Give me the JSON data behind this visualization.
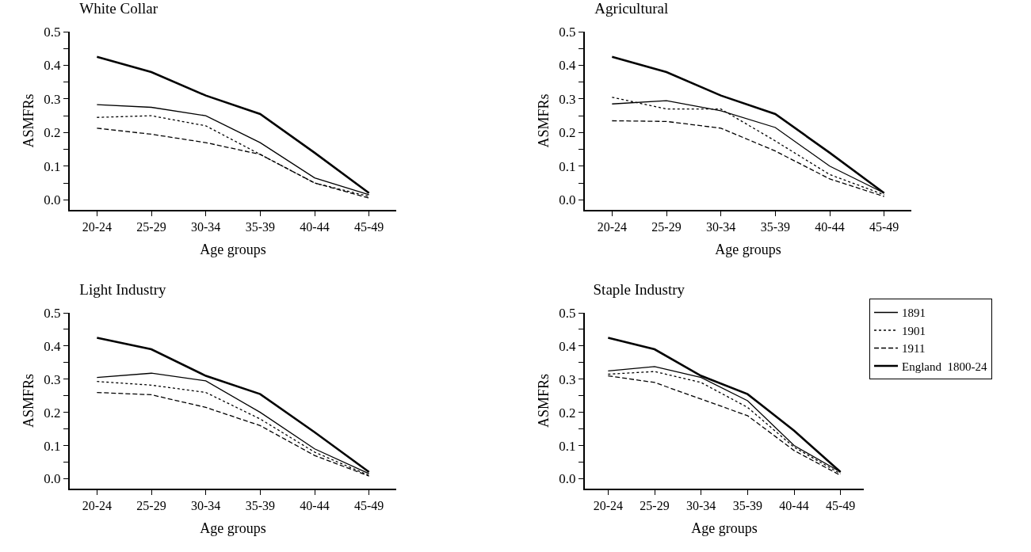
{
  "chart_data": [
    {
      "type": "line",
      "title": "White Collar",
      "xlabel": "Age groups",
      "ylabel": "ASMFRs",
      "categories": [
        "20-24",
        "25-29",
        "30-34",
        "35-39",
        "40-44",
        "45-49"
      ],
      "ylim": [
        -0.03,
        0.5
      ],
      "yticks": [
        {
          "value": 0,
          "label": "0.0"
        },
        {
          "value": 0.05,
          "label": null
        },
        {
          "value": 0.1,
          "label": "0.1"
        },
        {
          "value": 0.15,
          "label": null
        },
        {
          "value": 0.2,
          "label": "0.2"
        },
        {
          "value": 0.25,
          "label": null
        },
        {
          "value": 0.3,
          "label": "0.3"
        },
        {
          "value": 0.35,
          "label": null
        },
        {
          "value": 0.4,
          "label": "0.4"
        },
        {
          "value": 0.45,
          "label": null
        },
        {
          "value": 0.5,
          "label": "0.5"
        }
      ],
      "grid": false,
      "legend": false,
      "marker": "none",
      "series": [
        {
          "color": "#000000",
          "line_style": "solid",
          "values": [
            0.283,
            0.275,
            0.25,
            0.17,
            0.065,
            0.015
          ]
        },
        {
          "color": "#000000",
          "line_style": "dotted",
          "values": [
            0.245,
            0.25,
            0.22,
            0.135,
            0.05,
            0.01
          ]
        },
        {
          "color": "#000000",
          "line_style": "dashed",
          "values": [
            0.213,
            0.195,
            0.17,
            0.135,
            0.05,
            0.005
          ]
        },
        {
          "color": "#000000",
          "line_style": "solid",
          "values": [
            0.425,
            0.38,
            0.31,
            0.255,
            0.14,
            0.02
          ]
        }
      ]
    },
    {
      "type": "line",
      "title": "Agricultural",
      "xlabel": "Age groups",
      "ylabel": "ASMFRs",
      "categories": [
        "20-24",
        "25-29",
        "30-34",
        "35-39",
        "40-44",
        "45-49"
      ],
      "ylim": [
        -0.03,
        0.5
      ],
      "yticks": [
        {
          "value": 0,
          "label": "0.0"
        },
        {
          "value": 0.05,
          "label": null
        },
        {
          "value": 0.1,
          "label": "0.1"
        },
        {
          "value": 0.15,
          "label": null
        },
        {
          "value": 0.2,
          "label": "0.2"
        },
        {
          "value": 0.25,
          "label": null
        },
        {
          "value": 0.3,
          "label": "0.3"
        },
        {
          "value": 0.35,
          "label": null
        },
        {
          "value": 0.4,
          "label": "0.4"
        },
        {
          "value": 0.45,
          "label": null
        },
        {
          "value": 0.5,
          "label": "0.5"
        }
      ],
      "grid": false,
      "legend": false,
      "marker": "none",
      "series": [
        {
          "color": "#000000",
          "line_style": "solid",
          "values": [
            0.285,
            0.295,
            0.265,
            0.215,
            0.1,
            0.02
          ]
        },
        {
          "color": "#000000",
          "line_style": "dotted",
          "values": [
            0.305,
            0.27,
            0.27,
            0.175,
            0.075,
            0.015
          ]
        },
        {
          "color": "#000000",
          "line_style": "dashed",
          "values": [
            0.235,
            0.233,
            0.213,
            0.145,
            0.062,
            0.01
          ]
        },
        {
          "color": "#000000",
          "line_style": "solid",
          "values": [
            0.425,
            0.38,
            0.31,
            0.255,
            0.14,
            0.02
          ]
        }
      ]
    },
    {
      "type": "line",
      "title": "Light Industry",
      "xlabel": "Age groups",
      "ylabel": "ASMFRs",
      "categories": [
        "20-24",
        "25-29",
        "30-34",
        "35-39",
        "40-44",
        "45-49"
      ],
      "ylim": [
        -0.03,
        0.5
      ],
      "yticks": [
        {
          "value": 0,
          "label": "0.0"
        },
        {
          "value": 0.05,
          "label": null
        },
        {
          "value": 0.1,
          "label": "0.1"
        },
        {
          "value": 0.15,
          "label": null
        },
        {
          "value": 0.2,
          "label": "0.2"
        },
        {
          "value": 0.25,
          "label": null
        },
        {
          "value": 0.3,
          "label": "0.3"
        },
        {
          "value": 0.35,
          "label": null
        },
        {
          "value": 0.4,
          "label": "0.4"
        },
        {
          "value": 0.45,
          "label": null
        },
        {
          "value": 0.5,
          "label": "0.5"
        }
      ],
      "grid": false,
      "legend": false,
      "marker": "none",
      "series": [
        {
          "color": "#000000",
          "line_style": "solid",
          "values": [
            0.305,
            0.318,
            0.295,
            0.2,
            0.09,
            0.015
          ]
        },
        {
          "color": "#000000",
          "line_style": "dotted",
          "values": [
            0.293,
            0.282,
            0.26,
            0.18,
            0.08,
            0.01
          ]
        },
        {
          "color": "#000000",
          "line_style": "dashed",
          "values": [
            0.26,
            0.253,
            0.215,
            0.16,
            0.07,
            0.008
          ]
        },
        {
          "color": "#000000",
          "line_style": "solid",
          "values": [
            0.425,
            0.39,
            0.31,
            0.255,
            0.14,
            0.02
          ]
        }
      ]
    },
    {
      "type": "line",
      "title": "Staple Industry",
      "xlabel": "Age groups",
      "ylabel": "ASMFRs",
      "categories": [
        "20-24",
        "25-29",
        "30-34",
        "35-39",
        "40-44",
        "45-49"
      ],
      "ylim": [
        -0.03,
        0.5
      ],
      "yticks": [
        {
          "value": 0,
          "label": "0.0"
        },
        {
          "value": 0.05,
          "label": null
        },
        {
          "value": 0.1,
          "label": "0.1"
        },
        {
          "value": 0.15,
          "label": null
        },
        {
          "value": 0.2,
          "label": "0.2"
        },
        {
          "value": 0.25,
          "label": null
        },
        {
          "value": 0.3,
          "label": "0.3"
        },
        {
          "value": 0.35,
          "label": null
        },
        {
          "value": 0.4,
          "label": "0.4"
        },
        {
          "value": 0.45,
          "label": null
        },
        {
          "value": 0.5,
          "label": "0.5"
        }
      ],
      "grid": false,
      "legend": "top right",
      "marker": "none",
      "series": [
        {
          "name": "1891",
          "color": "#000000",
          "line_style": "solid",
          "values": [
            0.325,
            0.338,
            0.305,
            0.235,
            0.1,
            0.02
          ]
        },
        {
          "name": "1901",
          "color": "#000000",
          "line_style": "dotted",
          "values": [
            0.315,
            0.323,
            0.29,
            0.215,
            0.095,
            0.015
          ]
        },
        {
          "name": "1911",
          "color": "#000000",
          "line_style": "dashed",
          "values": [
            0.31,
            0.29,
            0.24,
            0.19,
            0.085,
            0.01
          ]
        },
        {
          "name": "England  1800-24",
          "color": "#000000",
          "line_style": "solid",
          "values": [
            0.425,
            0.39,
            0.31,
            0.255,
            0.145,
            0.02
          ]
        }
      ]
    }
  ]
}
